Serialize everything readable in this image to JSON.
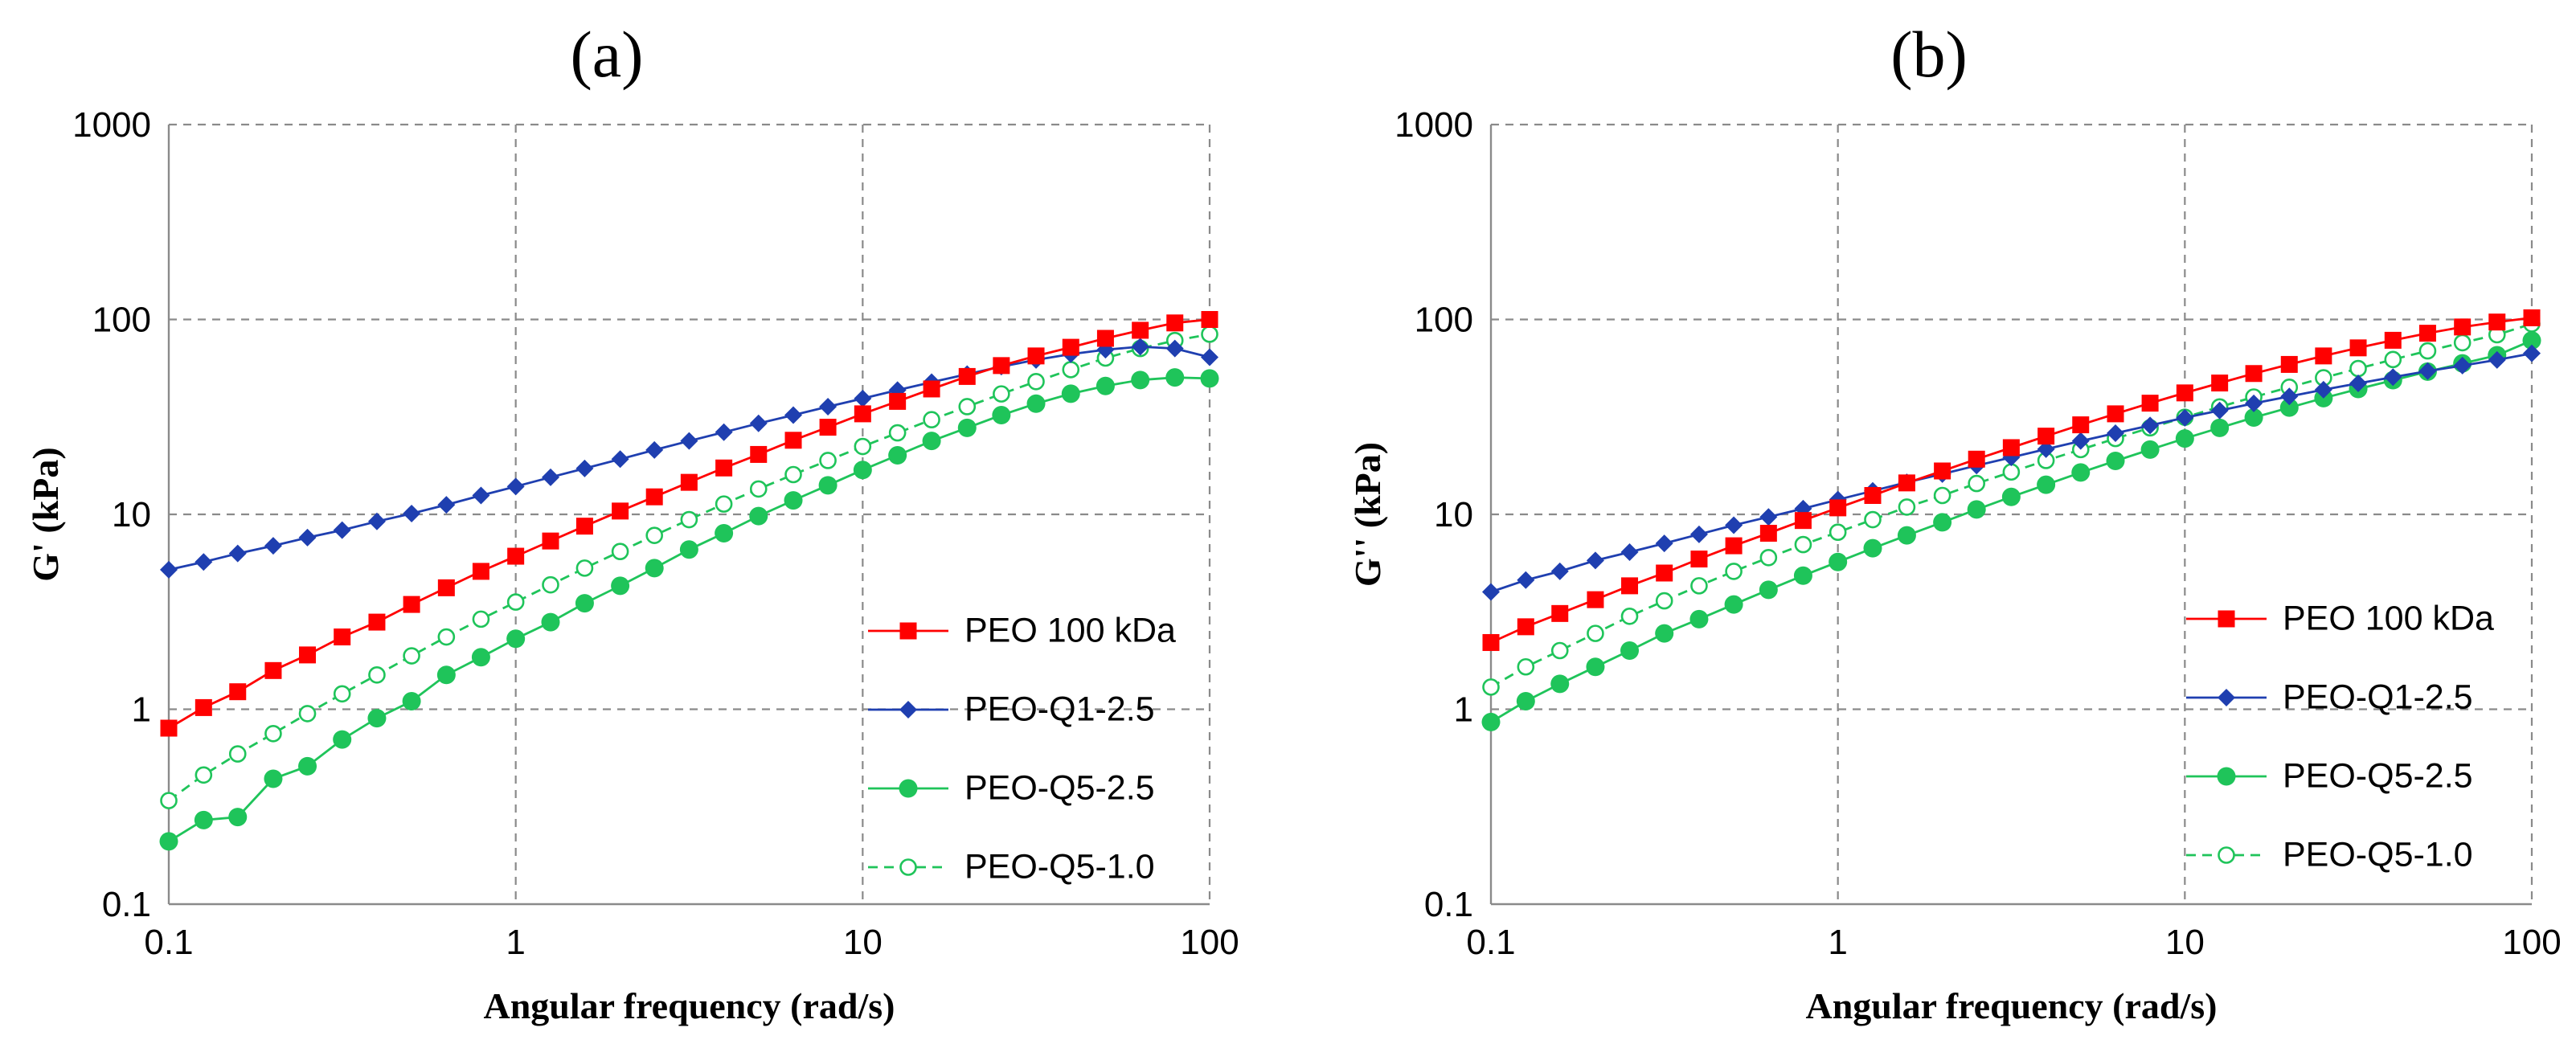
{
  "chart_data": [
    {
      "type": "line",
      "panel": "a",
      "title": "(a)",
      "xlabel": "Angular frequency (rad/s)",
      "ylabel": "G' (kPa)",
      "xscale": "log",
      "yscale": "log",
      "xlim": [
        0.1,
        100
      ],
      "ylim": [
        0.1,
        1000
      ],
      "xticks": [
        "0.1",
        "1",
        "10",
        "100"
      ],
      "yticks": [
        "0.1",
        "1",
        "10",
        "100",
        "1000"
      ],
      "grid": true,
      "legend_position": "right-middle",
      "x": [
        0.1,
        0.126,
        0.158,
        0.2,
        0.251,
        0.316,
        0.398,
        0.501,
        0.631,
        0.794,
        1.0,
        1.26,
        1.58,
        2.0,
        2.51,
        3.16,
        3.98,
        5.01,
        6.31,
        7.94,
        10.0,
        12.6,
        15.8,
        20.0,
        25.1,
        31.6,
        39.8,
        50.1,
        63.1,
        79.4,
        100.0
      ],
      "series": [
        {
          "name": "PEO 100 kDa",
          "color": "#ff0000",
          "marker": "square",
          "line": "solid",
          "values": [
            0.8,
            1.02,
            1.23,
            1.58,
            1.9,
            2.35,
            2.8,
            3.45,
            4.2,
            5.1,
            6.1,
            7.3,
            8.7,
            10.4,
            12.3,
            14.6,
            17.3,
            20.3,
            24.0,
            28.0,
            32.8,
            38.0,
            44.0,
            51.0,
            58.0,
            65.0,
            72.0,
            80.0,
            88.0,
            96.0,
            100.0
          ]
        },
        {
          "name": "PEO-Q1-2.5",
          "color": "#1f3fb0",
          "marker": "diamond",
          "line": "solid",
          "values": [
            5.2,
            5.7,
            6.3,
            6.9,
            7.6,
            8.3,
            9.2,
            10.1,
            11.2,
            12.5,
            13.9,
            15.5,
            17.2,
            19.2,
            21.4,
            23.8,
            26.4,
            29.3,
            32.3,
            35.7,
            39.3,
            43.4,
            47.7,
            52.4,
            57.3,
            62.0,
            66.4,
            70.0,
            72.5,
            71.0,
            64.0
          ]
        },
        {
          "name": "PEO-Q5-2.5",
          "color": "#1fc45a",
          "marker": "circle",
          "line": "solid",
          "values": [
            0.21,
            0.27,
            0.28,
            0.44,
            0.51,
            0.7,
            0.9,
            1.1,
            1.5,
            1.85,
            2.3,
            2.8,
            3.5,
            4.3,
            5.3,
            6.6,
            8.0,
            9.8,
            11.8,
            14.1,
            16.9,
            20.1,
            23.8,
            27.8,
            32.3,
            37.0,
            41.6,
            45.6,
            48.9,
            50.4,
            49.8
          ]
        },
        {
          "name": "PEO-Q5-1.0",
          "color": "#1fc45a",
          "marker": "open-circle",
          "line": "dashed",
          "values": [
            0.34,
            0.46,
            0.59,
            0.75,
            0.95,
            1.2,
            1.5,
            1.88,
            2.35,
            2.9,
            3.55,
            4.35,
            5.3,
            6.45,
            7.8,
            9.4,
            11.3,
            13.5,
            16.0,
            18.9,
            22.3,
            26.2,
            30.6,
            35.7,
            41.5,
            48.0,
            55.3,
            63.4,
            71.0,
            78.0,
            84.0
          ]
        }
      ]
    },
    {
      "type": "line",
      "panel": "b",
      "title": "(b)",
      "xlabel": "Angular frequency (rad/s)",
      "ylabel": "G'' (kPa)",
      "xscale": "log",
      "yscale": "log",
      "xlim": [
        0.1,
        100
      ],
      "ylim": [
        0.1,
        1000
      ],
      "xticks": [
        "0.1",
        "1",
        "10",
        "100"
      ],
      "yticks": [
        "0.1",
        "1",
        "10",
        "100",
        "1000"
      ],
      "grid": true,
      "legend_position": "right-middle",
      "x": [
        0.1,
        0.126,
        0.158,
        0.2,
        0.251,
        0.316,
        0.398,
        0.501,
        0.631,
        0.794,
        1.0,
        1.26,
        1.58,
        2.0,
        2.51,
        3.16,
        3.98,
        5.01,
        6.31,
        7.94,
        10.0,
        12.6,
        15.8,
        20.0,
        25.1,
        31.6,
        39.8,
        50.1,
        63.1,
        79.4,
        100.0
      ],
      "series": [
        {
          "name": "PEO 100 kDa",
          "color": "#ff0000",
          "marker": "square",
          "line": "solid",
          "values": [
            2.2,
            2.65,
            3.1,
            3.65,
            4.3,
            5.0,
            5.9,
            6.9,
            8.0,
            9.3,
            10.8,
            12.5,
            14.5,
            16.7,
            19.2,
            22.0,
            25.2,
            28.8,
            32.8,
            37.2,
            42.0,
            47.2,
            52.8,
            58.8,
            65.0,
            71.5,
            78.2,
            85.0,
            91.5,
            97.0,
            102.0
          ]
        },
        {
          "name": "PEO-Q1-2.5",
          "color": "#1f3fb0",
          "marker": "diamond",
          "line": "solid",
          "values": [
            4.0,
            4.6,
            5.1,
            5.8,
            6.4,
            7.1,
            7.9,
            8.8,
            9.7,
            10.7,
            11.9,
            13.2,
            14.6,
            16.1,
            17.8,
            19.6,
            21.6,
            23.8,
            26.1,
            28.6,
            31.3,
            34.1,
            37.1,
            40.3,
            43.6,
            47.0,
            50.6,
            54.3,
            58.0,
            62.0,
            67.0
          ]
        },
        {
          "name": "PEO-Q5-2.5",
          "color": "#1fc45a",
          "marker": "circle",
          "line": "solid",
          "values": [
            0.86,
            1.1,
            1.35,
            1.65,
            2.0,
            2.45,
            2.9,
            3.45,
            4.1,
            4.85,
            5.7,
            6.7,
            7.8,
            9.1,
            10.6,
            12.3,
            14.2,
            16.4,
            18.8,
            21.5,
            24.5,
            27.8,
            31.4,
            35.3,
            39.5,
            44.0,
            48.8,
            54.0,
            59.5,
            65.5,
            78.0
          ]
        },
        {
          "name": "PEO-Q5-1.0",
          "color": "#1fc45a",
          "marker": "open-circle",
          "line": "dashed",
          "values": [
            1.3,
            1.65,
            2.0,
            2.45,
            3.0,
            3.6,
            4.3,
            5.1,
            6.0,
            7.0,
            8.1,
            9.4,
            10.9,
            12.5,
            14.4,
            16.5,
            18.9,
            21.5,
            24.5,
            27.8,
            31.5,
            35.6,
            40.0,
            44.9,
            50.2,
            56.0,
            62.3,
            69.0,
            76.0,
            83.5,
            95.0
          ]
        }
      ]
    }
  ]
}
